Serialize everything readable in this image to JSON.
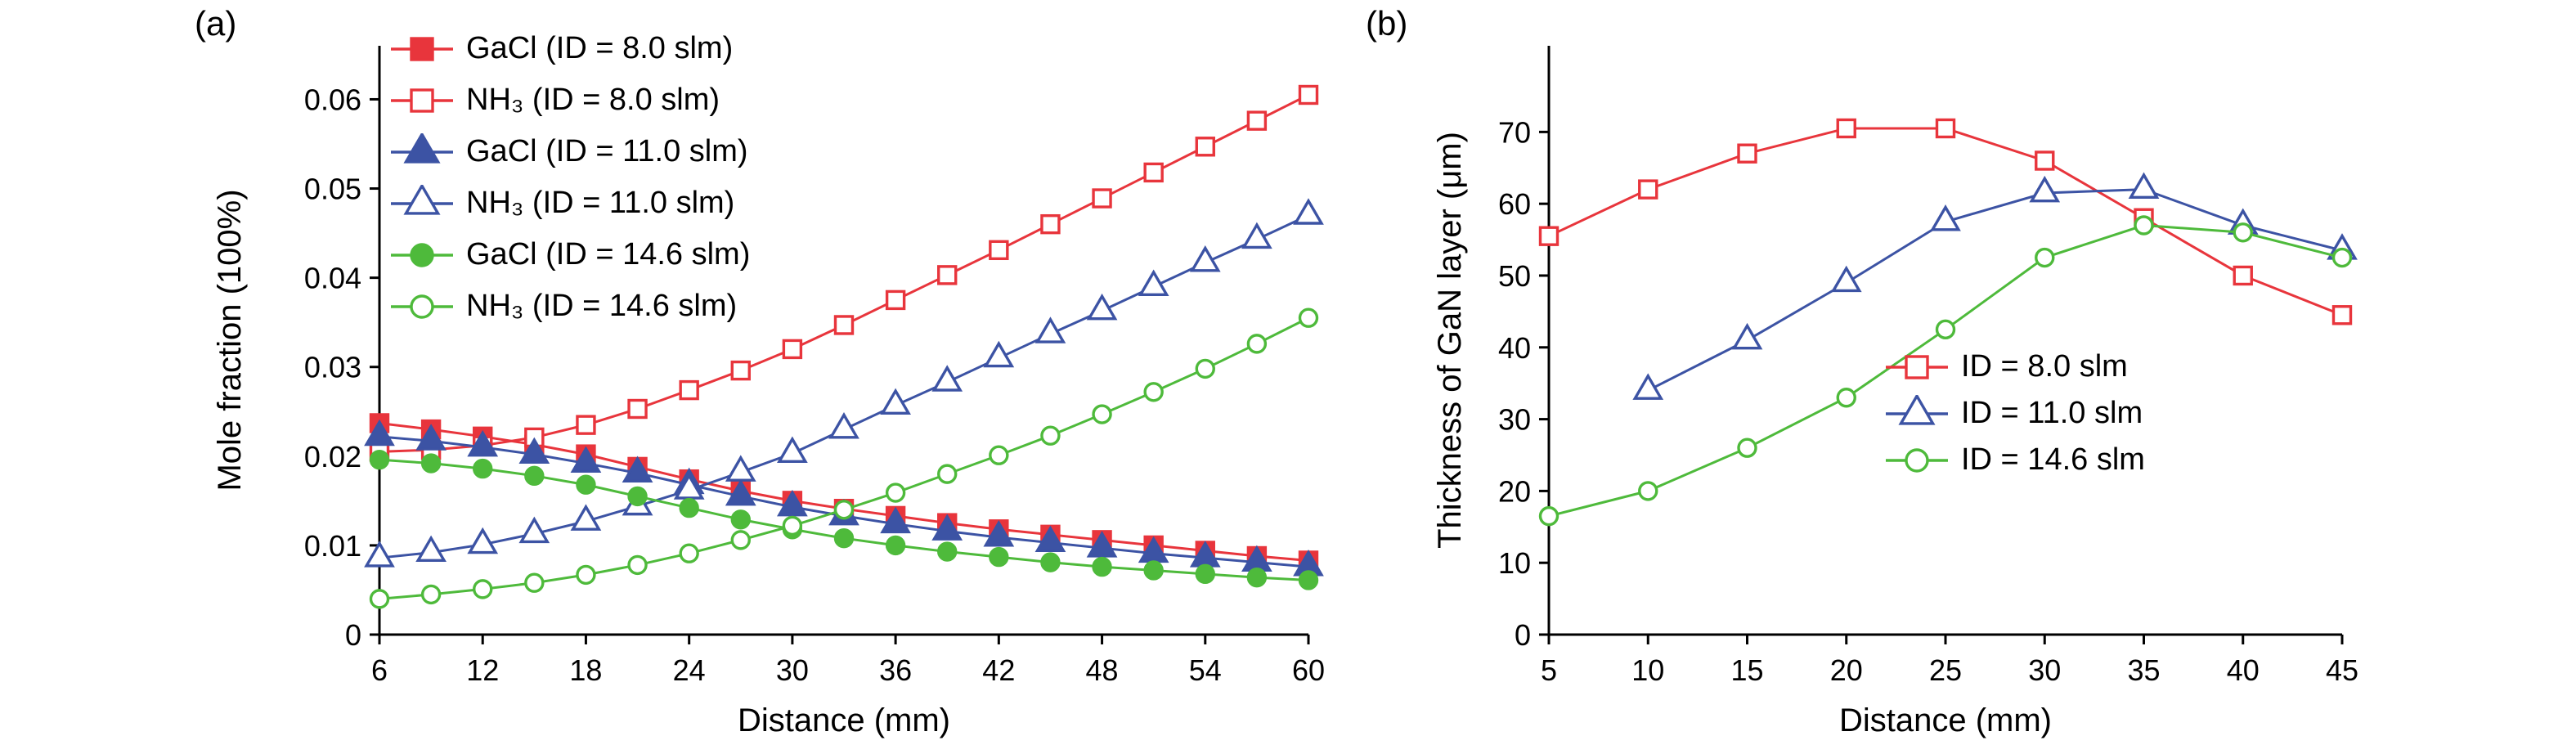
{
  "panels": {
    "a": "(a)",
    "b": "(b)"
  },
  "chart_data": [
    {
      "type": "line",
      "title": "",
      "xlabel": "Distance (mm)",
      "ylabel": "Mole fraction (100%)",
      "xlim": [
        6,
        60
      ],
      "ylim": [
        0,
        0.066
      ],
      "xticks": [
        6,
        12,
        18,
        24,
        30,
        36,
        42,
        48,
        54,
        60
      ],
      "yticks": [
        0,
        0.01,
        0.02,
        0.03,
        0.04,
        0.05,
        0.06
      ],
      "ytick_labels": [
        "0",
        "0.01",
        "0.02",
        "0.03",
        "0.04",
        "0.05",
        "0.06"
      ],
      "grid": false,
      "legend_position": "upper-left-inside",
      "x": [
        6,
        9,
        12,
        15,
        18,
        21,
        24,
        27,
        30,
        33,
        36,
        39,
        42,
        45,
        48,
        51,
        54,
        57,
        60
      ],
      "series": [
        {
          "name": "GaCl (ID = 8.0 slm)",
          "color": "#e8353c",
          "marker": "square",
          "fill": "filled",
          "values": [
            0.0237,
            0.023,
            0.0222,
            0.0213,
            0.0202,
            0.0188,
            0.0174,
            0.0161,
            0.015,
            0.0141,
            0.0133,
            0.0125,
            0.0118,
            0.0112,
            0.0106,
            0.01,
            0.0094,
            0.0088,
            0.0083
          ]
        },
        {
          "name": "NH₃ (ID = 8.0 slm)",
          "color": "#e8353c",
          "marker": "square",
          "fill": "open",
          "values": [
            0.0205,
            0.0207,
            0.0212,
            0.0221,
            0.0235,
            0.0253,
            0.0274,
            0.0296,
            0.032,
            0.0347,
            0.0375,
            0.0403,
            0.0431,
            0.046,
            0.0489,
            0.0518,
            0.0547,
            0.0576,
            0.0605
          ]
        },
        {
          "name": "GaCl (ID = 11.0 slm)",
          "color": "#3c53a4",
          "marker": "triangle",
          "fill": "filled",
          "values": [
            0.0222,
            0.0217,
            0.021,
            0.0202,
            0.0192,
            0.0181,
            0.0168,
            0.0155,
            0.0143,
            0.0133,
            0.0124,
            0.0116,
            0.0109,
            0.0103,
            0.0097,
            0.0091,
            0.0086,
            0.0081,
            0.0076
          ]
        },
        {
          "name": "NH₃ (ID = 11.0 slm)",
          "color": "#3c53a4",
          "marker": "triangle",
          "fill": "open",
          "values": [
            0.0086,
            0.0092,
            0.0101,
            0.0113,
            0.0127,
            0.0144,
            0.0162,
            0.0182,
            0.0203,
            0.023,
            0.0257,
            0.0283,
            0.031,
            0.0337,
            0.0363,
            0.039,
            0.0417,
            0.0443,
            0.047
          ]
        },
        {
          "name": "GaCl (ID = 14.6 slm)",
          "color": "#4eba3b",
          "marker": "circle",
          "fill": "filled",
          "values": [
            0.0196,
            0.0192,
            0.0186,
            0.0178,
            0.0168,
            0.0155,
            0.0142,
            0.0129,
            0.0118,
            0.0108,
            0.01,
            0.0093,
            0.0087,
            0.0081,
            0.0076,
            0.0072,
            0.0068,
            0.0064,
            0.0061
          ]
        },
        {
          "name": "NH₃ (ID = 14.6 slm)",
          "color": "#4eba3b",
          "marker": "circle",
          "fill": "open",
          "values": [
            0.004,
            0.0045,
            0.0051,
            0.0058,
            0.0067,
            0.0078,
            0.0091,
            0.0106,
            0.0122,
            0.014,
            0.0159,
            0.018,
            0.0201,
            0.0223,
            0.0247,
            0.0272,
            0.0298,
            0.0326,
            0.0355
          ]
        }
      ]
    },
    {
      "type": "line",
      "title": "",
      "xlabel": "Distance (mm)",
      "ylabel": "Thickness of GaN layer (μm)",
      "xlim": [
        5,
        45
      ],
      "ylim": [
        0,
        82
      ],
      "xticks": [
        5,
        10,
        15,
        20,
        25,
        30,
        35,
        40,
        45
      ],
      "yticks": [
        0,
        10,
        20,
        30,
        40,
        50,
        60,
        70
      ],
      "ytick_labels": [
        "0",
        "10",
        "20",
        "30",
        "40",
        "50",
        "60",
        "70"
      ],
      "grid": false,
      "legend_position": "middle-right-inside",
      "series": [
        {
          "name": "ID = 8.0 slm",
          "color": "#e8353c",
          "marker": "square",
          "fill": "open",
          "x": [
            5,
            10,
            15,
            20,
            25,
            30,
            35,
            40,
            45
          ],
          "values": [
            55.5,
            62,
            67,
            70.5,
            70.5,
            66,
            58,
            50,
            44.5
          ]
        },
        {
          "name": "ID = 11.0 slm",
          "color": "#3c53a4",
          "marker": "triangle",
          "fill": "open",
          "x": [
            10,
            15,
            20,
            25,
            30,
            35,
            40,
            45
          ],
          "values": [
            34,
            41,
            49,
            57.5,
            61.5,
            62,
            57,
            53.5
          ]
        },
        {
          "name": "ID = 14.6 slm",
          "color": "#4eba3b",
          "marker": "circle",
          "fill": "open",
          "x": [
            5,
            10,
            15,
            20,
            25,
            30,
            35,
            40,
            45
          ],
          "values": [
            16.5,
            20,
            26,
            33,
            42.5,
            52.5,
            57,
            56,
            52.5
          ]
        }
      ]
    }
  ]
}
